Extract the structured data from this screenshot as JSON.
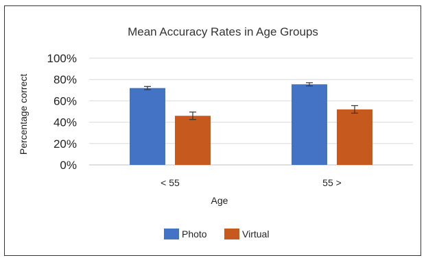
{
  "chart_data": {
    "type": "bar",
    "title": "Mean Accuracy Rates in Age Groups",
    "xlabel": "Age",
    "ylabel": "Percentage correct",
    "categories": [
      "< 55",
      "55 >"
    ],
    "series": [
      {
        "name": "Photo",
        "values": [
          72,
          75.5
        ],
        "errors": [
          1.5,
          1.5
        ]
      },
      {
        "name": "Virtual",
        "values": [
          46,
          52
        ],
        "errors": [
          3.5,
          3.5
        ]
      }
    ],
    "ylim": [
      0,
      100
    ],
    "yticks": [
      "0%",
      "20%",
      "40%",
      "60%",
      "80%",
      "100%"
    ],
    "grid": true,
    "legend_position": "bottom",
    "colors": {
      "Photo": "#4472c4",
      "Virtual": "#c65a1e",
      "grid": "#d9d9d9",
      "errorbar": "#333333"
    }
  }
}
